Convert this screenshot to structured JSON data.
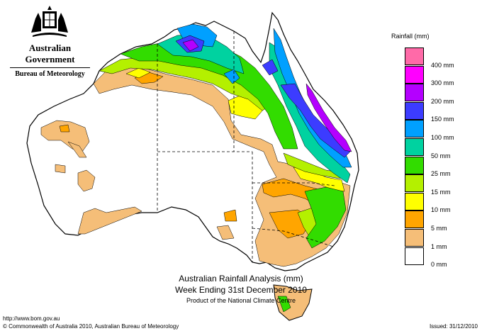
{
  "header": {
    "government": "Australian Government",
    "bureau": "Bureau of Meteorology"
  },
  "legend": {
    "title": "Rainfall (mm)",
    "items": [
      {
        "label": "",
        "color": "#ff6aa8"
      },
      {
        "label": "400 mm",
        "color": "#ff00ff"
      },
      {
        "label": "300 mm",
        "color": "#b400ff"
      },
      {
        "label": "200 mm",
        "color": "#3c3cff"
      },
      {
        "label": "150 mm",
        "color": "#00a0ff"
      },
      {
        "label": "100 mm",
        "color": "#00d2a0"
      },
      {
        "label": "50 mm",
        "color": "#32dc00"
      },
      {
        "label": "25 mm",
        "color": "#b4f000"
      },
      {
        "label": "15 mm",
        "color": "#ffff00"
      },
      {
        "label": "10 mm",
        "color": "#ffa500"
      },
      {
        "label": "5 mm",
        "color": "#f5be78"
      },
      {
        "label": "1 mm",
        "color": "#ffffff"
      },
      {
        "label": "0 mm",
        "color": ""
      }
    ]
  },
  "title": {
    "line1": "Australian Rainfall Analysis (mm)",
    "line2": "Week Ending 31st December 2010",
    "line3": "Product of the National Climate Centre"
  },
  "footer": {
    "url": "http://www.bom.gov.au",
    "copyright": "© Commonwealth of Australia 2010, Australian Bureau of Meteorology",
    "issued": "Issued: 31/12/2010"
  }
}
